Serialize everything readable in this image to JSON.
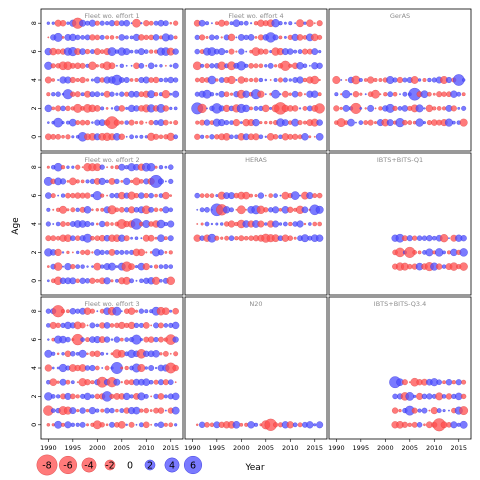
{
  "chart_data": {
    "type": "bubble",
    "xlabel": "Year",
    "ylabel": "Age",
    "xlim": [
      1988.5,
      2017.5
    ],
    "x_ticks": [
      "1990",
      "1995",
      "2000",
      "2005",
      "2010",
      "2015"
    ],
    "y_ticks": [
      "0",
      "2",
      "4",
      "6",
      "8"
    ],
    "colors": {
      "negative": "#ff4d4d",
      "positive": "#4d4dff",
      "frame": "#000000"
    },
    "legend": [
      {
        "label": "-8",
        "value": -8
      },
      {
        "label": "-6",
        "value": -6
      },
      {
        "label": "-4",
        "value": -4
      },
      {
        "label": "-2",
        "value": -2
      },
      {
        "label": "0",
        "value": 0
      },
      {
        "label": "2",
        "value": 2
      },
      {
        "label": "4",
        "value": 4
      },
      {
        "label": "6",
        "value": 6
      }
    ],
    "panels": [
      {
        "title": "Fleet wo. effort 1",
        "years": [
          1990,
          2016
        ],
        "ages": [
          0,
          8
        ],
        "seed": 11
      },
      {
        "title": "Fleet wo. effort 4",
        "years": [
          1991,
          2016
        ],
        "ages": [
          0,
          8
        ],
        "seed": 23
      },
      {
        "title": "GerAS",
        "years": [
          1990,
          2016
        ],
        "ages": [
          1,
          4
        ],
        "seed": 37
      },
      {
        "title": "Fleet wo. effort 2",
        "years": [
          1990,
          2015
        ],
        "ages": [
          0,
          8
        ],
        "seed": 41
      },
      {
        "title": "HERAS",
        "years": [
          1991,
          2016
        ],
        "ages": [
          3,
          6
        ],
        "seed": 53
      },
      {
        "title": "IBTS+BITS-Q1",
        "years": [
          2002,
          2016
        ],
        "ages": [
          1,
          3
        ],
        "seed": 67
      },
      {
        "title": "Fleet wo. effort 3",
        "years": [
          1990,
          2016
        ],
        "ages": [
          0,
          8
        ],
        "seed": 71
      },
      {
        "title": "N20",
        "years": [
          1991,
          2016
        ],
        "ages": [
          0,
          0
        ],
        "seed": 83
      },
      {
        "title": "IBTS+BITS-Q3.4",
        "years": [
          2002,
          2016
        ],
        "ages": [
          0,
          3
        ],
        "seed": 97
      }
    ]
  }
}
